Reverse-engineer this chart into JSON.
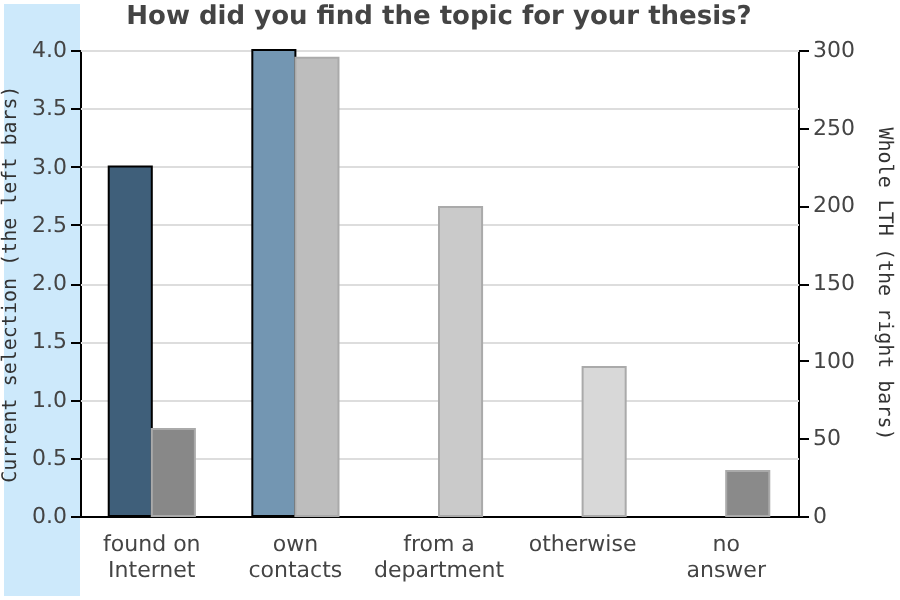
{
  "chart_data": {
    "type": "bar",
    "title": "How did you find the topic for your thesis?",
    "categories": [
      "found on Internet",
      "own contacts",
      "from a department",
      "otherwise",
      "no answer"
    ],
    "series": [
      {
        "colors": [
          "#3f5f7a",
          "#7396b2",
          null,
          null,
          null
        ],
        "values": [
          3.0,
          4.0,
          null,
          null,
          null
        ]
      },
      {
        "colors": [
          "#888888",
          "#bdbdbd",
          "#cacaca",
          "#d8d8d8",
          "#8a8a8a"
        ],
        "values": [
          56,
          295,
          199,
          96,
          29
        ],
        "axis": "y2"
      }
    ],
    "ylabel": "Current selection (the left bars)",
    "y2label": "Whole LTH (the right bars)",
    "ylim": [
      0,
      4
    ],
    "yticks": [
      {
        "value": 0,
        "label": "0.0"
      },
      0.5,
      {
        "value": 1,
        "label": "1.0"
      },
      1.5,
      {
        "value": 2,
        "label": "2.0"
      },
      2.5,
      {
        "value": 3,
        "label": "3.0"
      },
      3.5,
      {
        "value": 4,
        "label": "4.0"
      }
    ],
    "y2lim": [
      0,
      300
    ],
    "y2ticks": [
      0,
      50,
      100,
      150,
      200,
      250,
      300
    ],
    "grid": "y"
  }
}
